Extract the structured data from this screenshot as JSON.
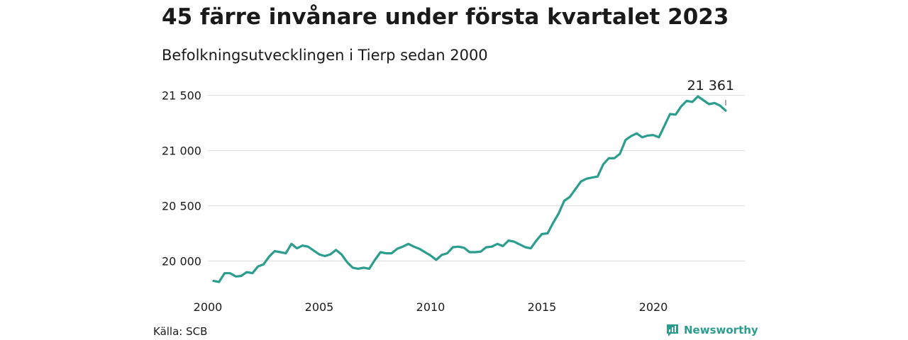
{
  "title": "45 färre invånare under första kvartalet 2023",
  "subtitle": "Befolkningsutvecklingen i Tierp sedan 2000",
  "source": "Källa: SCB",
  "brand": {
    "name": "Newsworthy",
    "icon": "newsworthy-logo-icon",
    "color": "#2a9d8f"
  },
  "chart_data": {
    "type": "line",
    "title": "45 färre invånare under första kvartalet 2023",
    "subtitle": "Befolkningsutvecklingen i Tierp sedan 2000",
    "xlabel": "",
    "ylabel": "",
    "xlim": [
      2000,
      2023.25
    ],
    "ylim": [
      19800,
      21600
    ],
    "x_ticks": [
      2000,
      2005,
      2010,
      2015,
      2020
    ],
    "x_tick_labels": [
      "2000",
      "2005",
      "2010",
      "2015",
      "2020"
    ],
    "y_ticks": [
      20000,
      20500,
      21000,
      21500
    ],
    "y_tick_labels": [
      "20 000",
      "20 500",
      "21 000",
      "21 500"
    ],
    "grid": "horizontal",
    "line_color": "#2a9d8f",
    "annotation": {
      "label": "21 361",
      "x": 2023.25,
      "y": 21361
    },
    "series": [
      {
        "name": "",
        "x": [
          2000.25,
          2000.5,
          2000.75,
          2001,
          2001.25,
          2001.5,
          2001.75,
          2002,
          2002.25,
          2002.5,
          2002.75,
          2003,
          2003.25,
          2003.5,
          2003.75,
          2004,
          2004.25,
          2004.5,
          2004.75,
          2005,
          2005.25,
          2005.5,
          2005.75,
          2006,
          2006.25,
          2006.5,
          2006.75,
          2007,
          2007.25,
          2007.5,
          2007.75,
          2008,
          2008.25,
          2008.5,
          2008.75,
          2009,
          2009.25,
          2009.5,
          2009.75,
          2010,
          2010.25,
          2010.5,
          2010.75,
          2011,
          2011.25,
          2011.5,
          2011.75,
          2012,
          2012.25,
          2012.5,
          2012.75,
          2013,
          2013.25,
          2013.5,
          2013.75,
          2014,
          2014.25,
          2014.5,
          2014.75,
          2015,
          2015.25,
          2015.5,
          2015.75,
          2016,
          2016.25,
          2016.5,
          2016.75,
          2017,
          2017.25,
          2017.5,
          2017.75,
          2018,
          2018.25,
          2018.5,
          2018.75,
          2019,
          2019.25,
          2019.5,
          2019.75,
          2020,
          2020.25,
          2020.5,
          2020.75,
          2021,
          2021.25,
          2021.5,
          2021.75,
          2022,
          2022.25,
          2022.5,
          2022.75,
          2023,
          2023.25
        ],
        "values": [
          19820,
          19810,
          19890,
          19890,
          19860,
          19865,
          19900,
          19890,
          19950,
          19970,
          20040,
          20090,
          20080,
          20070,
          20155,
          20115,
          20140,
          20130,
          20095,
          20060,
          20045,
          20060,
          20100,
          20060,
          19990,
          19940,
          19930,
          19940,
          19930,
          20010,
          20080,
          20070,
          20070,
          20110,
          20130,
          20155,
          20130,
          20110,
          20080,
          20050,
          20010,
          20055,
          20070,
          20125,
          20130,
          20120,
          20080,
          20080,
          20085,
          20125,
          20130,
          20155,
          20135,
          20185,
          20175,
          20150,
          20125,
          20115,
          20185,
          20245,
          20250,
          20345,
          20430,
          20545,
          20580,
          20650,
          20720,
          20745,
          20755,
          20765,
          20875,
          20930,
          20930,
          20970,
          21095,
          21130,
          21155,
          21120,
          21135,
          21140,
          21120,
          21225,
          21330,
          21325,
          21400,
          21450,
          21440,
          21490,
          21455,
          21420,
          21430,
          21406,
          21361
        ]
      }
    ]
  }
}
